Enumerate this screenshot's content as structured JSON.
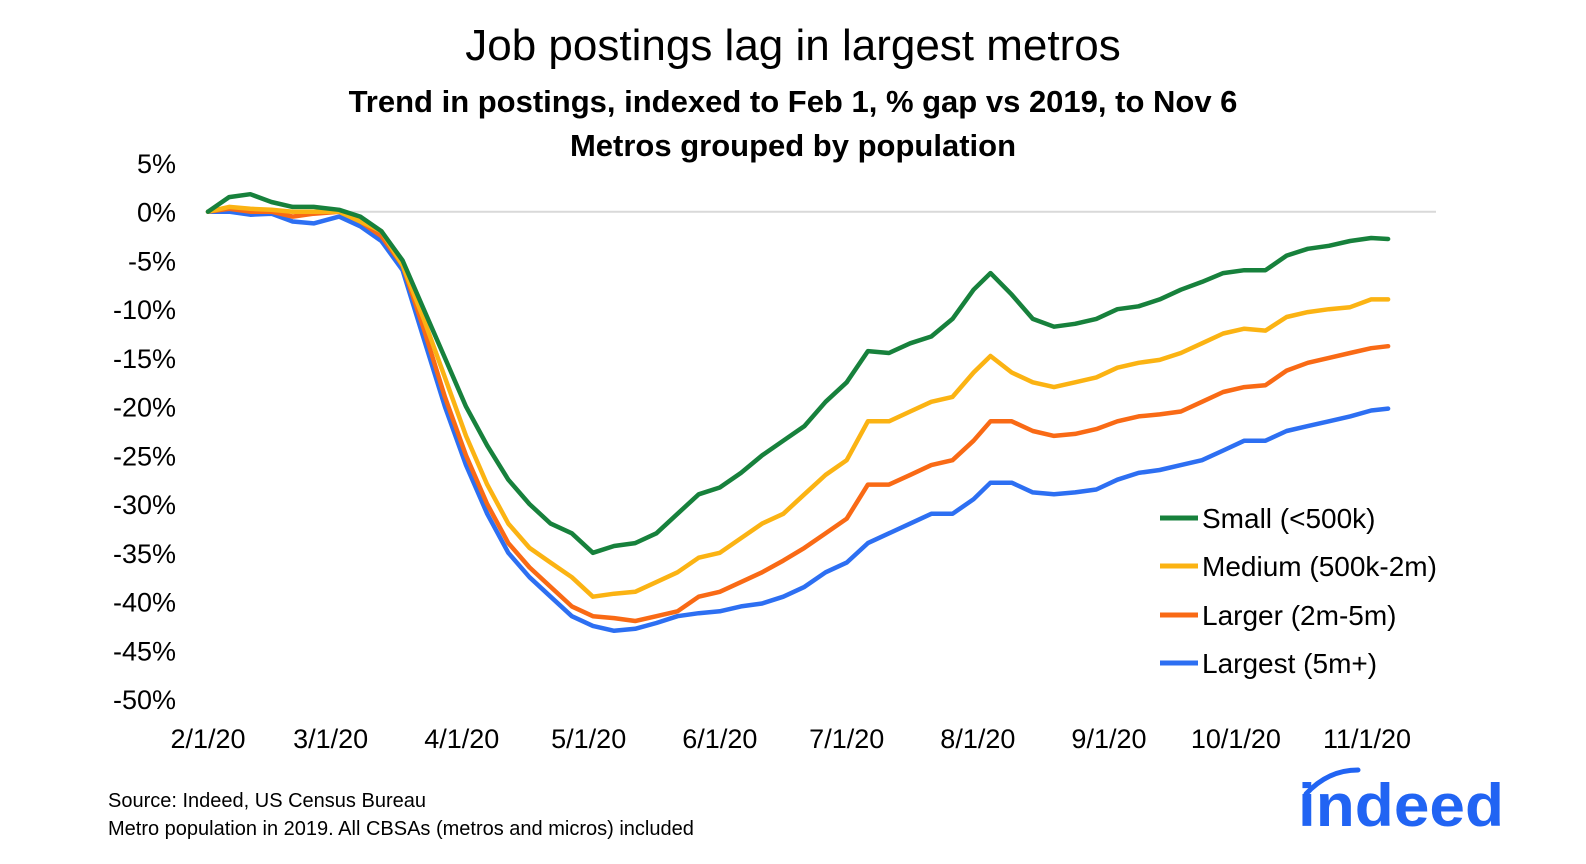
{
  "title": "Job postings lag in largest metros",
  "subtitle": "Trend in postings, indexed to Feb 1, % gap vs 2019, to Nov 6",
  "subtitle2": "Metros grouped by population",
  "source_line1": "Source: Indeed, US Census Bureau",
  "source_line2": "Metro population in 2019. All CBSAs (metros and micros) included",
  "logo_text": "indeed",
  "colors": {
    "small": "#17813c",
    "medium": "#fbb313",
    "larger": "#f96a15",
    "largest": "#2d6ff2",
    "zero_line": "#d9d9d9",
    "logo": "#2164f3"
  },
  "chart_data": {
    "type": "line",
    "xlabel": "",
    "ylabel": "",
    "xlim": [
      "2020-02-01",
      "2020-11-06"
    ],
    "ylim": [
      -50,
      5
    ],
    "yticks": [
      5,
      0,
      -5,
      -10,
      -15,
      -20,
      -25,
      -30,
      -35,
      -40,
      -45,
      -50
    ],
    "ytick_labels": [
      "5%",
      "0%",
      "-5%",
      "-10%",
      "-15%",
      "-20%",
      "-25%",
      "-30%",
      "-35%",
      "-40%",
      "-45%",
      "-50%"
    ],
    "xticks": [
      "2020-02-01",
      "2020-03-01",
      "2020-04-01",
      "2020-05-01",
      "2020-06-01",
      "2020-07-01",
      "2020-08-01",
      "2020-09-01",
      "2020-10-01",
      "2020-11-01"
    ],
    "xtick_labels": [
      "2/1/20",
      "3/1/20",
      "4/1/20",
      "5/1/20",
      "6/1/20",
      "7/1/20",
      "8/1/20",
      "9/1/20",
      "10/1/20",
      "11/1/20"
    ],
    "grid": false,
    "legend_position": "right",
    "series": [
      {
        "name": "Small (<500k)",
        "color": "#17813c",
        "points": [
          [
            "2020-02-01",
            0
          ],
          [
            "2020-02-06",
            1.5
          ],
          [
            "2020-02-11",
            1.8
          ],
          [
            "2020-02-16",
            1
          ],
          [
            "2020-02-21",
            0.5
          ],
          [
            "2020-02-26",
            0.5
          ],
          [
            "2020-03-03",
            0.2
          ],
          [
            "2020-03-08",
            -0.5
          ],
          [
            "2020-03-13",
            -2
          ],
          [
            "2020-03-18",
            -5
          ],
          [
            "2020-03-23",
            -10
          ],
          [
            "2020-03-28",
            -15
          ],
          [
            "2020-04-02",
            -20
          ],
          [
            "2020-04-07",
            -24
          ],
          [
            "2020-04-12",
            -27.5
          ],
          [
            "2020-04-17",
            -30
          ],
          [
            "2020-04-22",
            -32
          ],
          [
            "2020-04-27",
            -33
          ],
          [
            "2020-05-02",
            -35
          ],
          [
            "2020-05-07",
            -34.3
          ],
          [
            "2020-05-12",
            -34
          ],
          [
            "2020-05-17",
            -33
          ],
          [
            "2020-05-22",
            -31
          ],
          [
            "2020-05-27",
            -29
          ],
          [
            "2020-06-01",
            -28.3
          ],
          [
            "2020-06-06",
            -26.8
          ],
          [
            "2020-06-11",
            -25
          ],
          [
            "2020-06-16",
            -23.5
          ],
          [
            "2020-06-21",
            -22
          ],
          [
            "2020-06-26",
            -19.5
          ],
          [
            "2020-07-01",
            -17.5
          ],
          [
            "2020-07-06",
            -14.3
          ],
          [
            "2020-07-11",
            -14.5
          ],
          [
            "2020-07-16",
            -13.5
          ],
          [
            "2020-07-21",
            -12.8
          ],
          [
            "2020-07-26",
            -11
          ],
          [
            "2020-07-31",
            -8
          ],
          [
            "2020-08-04",
            -6.3
          ],
          [
            "2020-08-09",
            -8.5
          ],
          [
            "2020-08-14",
            -11
          ],
          [
            "2020-08-19",
            -11.8
          ],
          [
            "2020-08-24",
            -11.5
          ],
          [
            "2020-08-29",
            -11
          ],
          [
            "2020-09-03",
            -10
          ],
          [
            "2020-09-08",
            -9.7
          ],
          [
            "2020-09-13",
            -9
          ],
          [
            "2020-09-18",
            -8
          ],
          [
            "2020-09-23",
            -7.2
          ],
          [
            "2020-09-28",
            -6.3
          ],
          [
            "2020-10-03",
            -6
          ],
          [
            "2020-10-08",
            -6
          ],
          [
            "2020-10-13",
            -4.5
          ],
          [
            "2020-10-18",
            -3.8
          ],
          [
            "2020-10-23",
            -3.5
          ],
          [
            "2020-10-28",
            -3
          ],
          [
            "2020-11-02",
            -2.7
          ],
          [
            "2020-11-06",
            -2.8
          ]
        ]
      },
      {
        "name": "Medium (500k-2m)",
        "color": "#fbb313",
        "points": [
          [
            "2020-02-01",
            0
          ],
          [
            "2020-02-06",
            0.5
          ],
          [
            "2020-02-11",
            0.3
          ],
          [
            "2020-02-16",
            0.2
          ],
          [
            "2020-02-21",
            0
          ],
          [
            "2020-02-26",
            0
          ],
          [
            "2020-03-03",
            0
          ],
          [
            "2020-03-08",
            -1
          ],
          [
            "2020-03-13",
            -2
          ],
          [
            "2020-03-18",
            -5.5
          ],
          [
            "2020-03-23",
            -11
          ],
          [
            "2020-03-28",
            -17
          ],
          [
            "2020-04-02",
            -23
          ],
          [
            "2020-04-07",
            -28
          ],
          [
            "2020-04-12",
            -32
          ],
          [
            "2020-04-17",
            -34.5
          ],
          [
            "2020-04-22",
            -36
          ],
          [
            "2020-04-27",
            -37.5
          ],
          [
            "2020-05-02",
            -39.5
          ],
          [
            "2020-05-07",
            -39.2
          ],
          [
            "2020-05-12",
            -39
          ],
          [
            "2020-05-17",
            -38
          ],
          [
            "2020-05-22",
            -37
          ],
          [
            "2020-05-27",
            -35.5
          ],
          [
            "2020-06-01",
            -35
          ],
          [
            "2020-06-06",
            -33.5
          ],
          [
            "2020-06-11",
            -32
          ],
          [
            "2020-06-16",
            -31
          ],
          [
            "2020-06-21",
            -29
          ],
          [
            "2020-06-26",
            -27
          ],
          [
            "2020-07-01",
            -25.5
          ],
          [
            "2020-07-06",
            -21.5
          ],
          [
            "2020-07-11",
            -21.5
          ],
          [
            "2020-07-16",
            -20.5
          ],
          [
            "2020-07-21",
            -19.5
          ],
          [
            "2020-07-26",
            -19
          ],
          [
            "2020-07-31",
            -16.5
          ],
          [
            "2020-08-04",
            -14.8
          ],
          [
            "2020-08-09",
            -16.5
          ],
          [
            "2020-08-14",
            -17.5
          ],
          [
            "2020-08-19",
            -18
          ],
          [
            "2020-08-24",
            -17.5
          ],
          [
            "2020-08-29",
            -17
          ],
          [
            "2020-09-03",
            -16
          ],
          [
            "2020-09-08",
            -15.5
          ],
          [
            "2020-09-13",
            -15.2
          ],
          [
            "2020-09-18",
            -14.5
          ],
          [
            "2020-09-23",
            -13.5
          ],
          [
            "2020-09-28",
            -12.5
          ],
          [
            "2020-10-03",
            -12
          ],
          [
            "2020-10-08",
            -12.2
          ],
          [
            "2020-10-13",
            -10.8
          ],
          [
            "2020-10-18",
            -10.3
          ],
          [
            "2020-10-23",
            -10
          ],
          [
            "2020-10-28",
            -9.8
          ],
          [
            "2020-11-02",
            -9
          ],
          [
            "2020-11-06",
            -9
          ]
        ]
      },
      {
        "name": "Larger (2m-5m)",
        "color": "#f96a15",
        "points": [
          [
            "2020-02-01",
            0
          ],
          [
            "2020-02-06",
            0.3
          ],
          [
            "2020-02-11",
            0
          ],
          [
            "2020-02-16",
            0
          ],
          [
            "2020-02-21",
            -0.5
          ],
          [
            "2020-02-26",
            -0.2
          ],
          [
            "2020-03-03",
            0
          ],
          [
            "2020-03-08",
            -1
          ],
          [
            "2020-03-13",
            -2.5
          ],
          [
            "2020-03-18",
            -5.5
          ],
          [
            "2020-03-23",
            -12
          ],
          [
            "2020-03-28",
            -19
          ],
          [
            "2020-04-02",
            -25
          ],
          [
            "2020-04-07",
            -30
          ],
          [
            "2020-04-12",
            -34
          ],
          [
            "2020-04-17",
            -36.5
          ],
          [
            "2020-04-22",
            -38.5
          ],
          [
            "2020-04-27",
            -40.5
          ],
          [
            "2020-05-02",
            -41.5
          ],
          [
            "2020-05-07",
            -41.7
          ],
          [
            "2020-05-12",
            -42
          ],
          [
            "2020-05-17",
            -41.5
          ],
          [
            "2020-05-22",
            -41
          ],
          [
            "2020-05-27",
            -39.5
          ],
          [
            "2020-06-01",
            -39
          ],
          [
            "2020-06-06",
            -38
          ],
          [
            "2020-06-11",
            -37
          ],
          [
            "2020-06-16",
            -35.8
          ],
          [
            "2020-06-21",
            -34.5
          ],
          [
            "2020-06-26",
            -33
          ],
          [
            "2020-07-01",
            -31.5
          ],
          [
            "2020-07-06",
            -28
          ],
          [
            "2020-07-11",
            -28
          ],
          [
            "2020-07-16",
            -27
          ],
          [
            "2020-07-21",
            -26
          ],
          [
            "2020-07-26",
            -25.5
          ],
          [
            "2020-07-31",
            -23.5
          ],
          [
            "2020-08-04",
            -21.5
          ],
          [
            "2020-08-09",
            -21.5
          ],
          [
            "2020-08-14",
            -22.5
          ],
          [
            "2020-08-19",
            -23
          ],
          [
            "2020-08-24",
            -22.8
          ],
          [
            "2020-08-29",
            -22.3
          ],
          [
            "2020-09-03",
            -21.5
          ],
          [
            "2020-09-08",
            -21
          ],
          [
            "2020-09-13",
            -20.8
          ],
          [
            "2020-09-18",
            -20.5
          ],
          [
            "2020-09-23",
            -19.5
          ],
          [
            "2020-09-28",
            -18.5
          ],
          [
            "2020-10-03",
            -18
          ],
          [
            "2020-10-08",
            -17.8
          ],
          [
            "2020-10-13",
            -16.3
          ],
          [
            "2020-10-18",
            -15.5
          ],
          [
            "2020-10-23",
            -15
          ],
          [
            "2020-10-28",
            -14.5
          ],
          [
            "2020-11-02",
            -14
          ],
          [
            "2020-11-06",
            -13.8
          ]
        ]
      },
      {
        "name": "Largest (5m+)",
        "color": "#2d6ff2",
        "points": [
          [
            "2020-02-01",
            0
          ],
          [
            "2020-02-06",
            0
          ],
          [
            "2020-02-11",
            -0.3
          ],
          [
            "2020-02-16",
            -0.2
          ],
          [
            "2020-02-21",
            -1
          ],
          [
            "2020-02-26",
            -1.2
          ],
          [
            "2020-03-03",
            -0.5
          ],
          [
            "2020-03-08",
            -1.5
          ],
          [
            "2020-03-13",
            -3
          ],
          [
            "2020-03-18",
            -6
          ],
          [
            "2020-03-23",
            -13
          ],
          [
            "2020-03-28",
            -20
          ],
          [
            "2020-04-02",
            -26
          ],
          [
            "2020-04-07",
            -31
          ],
          [
            "2020-04-12",
            -35
          ],
          [
            "2020-04-17",
            -37.5
          ],
          [
            "2020-04-22",
            -39.5
          ],
          [
            "2020-04-27",
            -41.5
          ],
          [
            "2020-05-02",
            -42.5
          ],
          [
            "2020-05-07",
            -43
          ],
          [
            "2020-05-12",
            -42.8
          ],
          [
            "2020-05-17",
            -42.2
          ],
          [
            "2020-05-22",
            -41.5
          ],
          [
            "2020-05-27",
            -41.2
          ],
          [
            "2020-06-01",
            -41
          ],
          [
            "2020-06-06",
            -40.5
          ],
          [
            "2020-06-11",
            -40.2
          ],
          [
            "2020-06-16",
            -39.5
          ],
          [
            "2020-06-21",
            -38.5
          ],
          [
            "2020-06-26",
            -37
          ],
          [
            "2020-07-01",
            -36
          ],
          [
            "2020-07-06",
            -34
          ],
          [
            "2020-07-11",
            -33
          ],
          [
            "2020-07-16",
            -32
          ],
          [
            "2020-07-21",
            -31
          ],
          [
            "2020-07-26",
            -31
          ],
          [
            "2020-07-31",
            -29.5
          ],
          [
            "2020-08-04",
            -27.8
          ],
          [
            "2020-08-09",
            -27.8
          ],
          [
            "2020-08-14",
            -28.8
          ],
          [
            "2020-08-19",
            -29
          ],
          [
            "2020-08-24",
            -28.8
          ],
          [
            "2020-08-29",
            -28.5
          ],
          [
            "2020-09-03",
            -27.5
          ],
          [
            "2020-09-08",
            -26.8
          ],
          [
            "2020-09-13",
            -26.5
          ],
          [
            "2020-09-18",
            -26
          ],
          [
            "2020-09-23",
            -25.5
          ],
          [
            "2020-09-28",
            -24.5
          ],
          [
            "2020-10-03",
            -23.5
          ],
          [
            "2020-10-08",
            -23.5
          ],
          [
            "2020-10-13",
            -22.5
          ],
          [
            "2020-10-18",
            -22
          ],
          [
            "2020-10-23",
            -21.5
          ],
          [
            "2020-10-28",
            -21
          ],
          [
            "2020-11-02",
            -20.4
          ],
          [
            "2020-11-06",
            -20.2
          ]
        ]
      }
    ]
  }
}
